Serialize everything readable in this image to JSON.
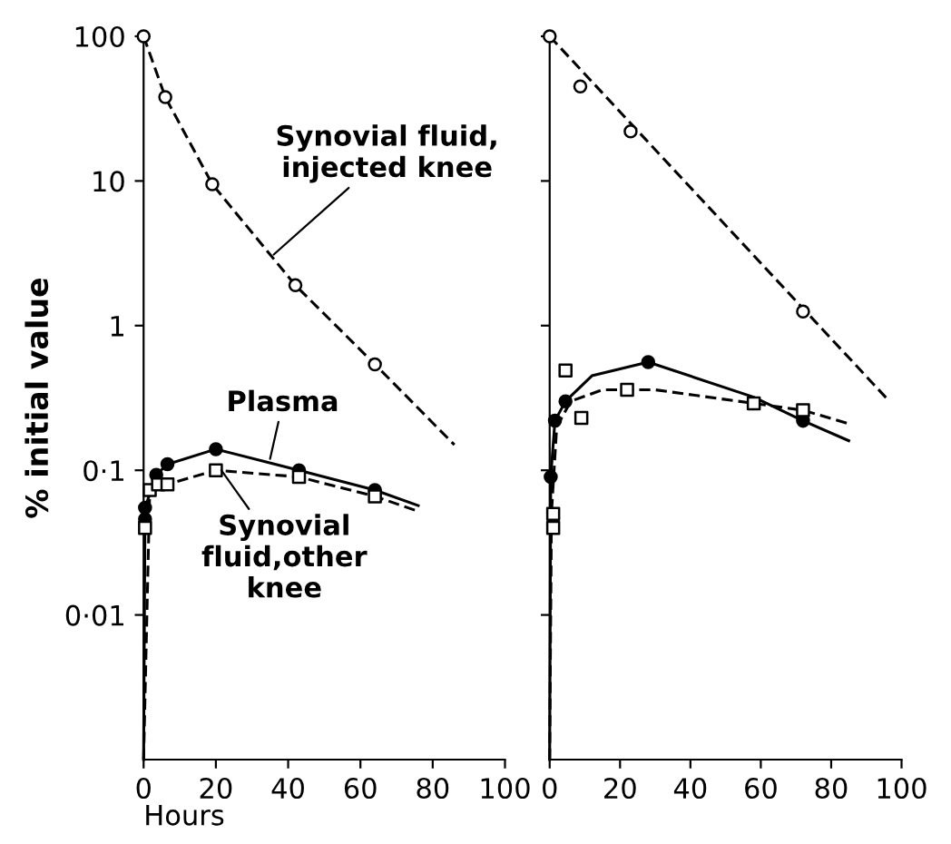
{
  "chart_data": [
    {
      "type": "line",
      "ylabel": "% initial value",
      "xlabel": "Hours",
      "log": "y",
      "ylim": [
        0.001,
        100
      ],
      "xlim": [
        0,
        100
      ],
      "yticks": [
        100,
        10,
        1,
        {
          "value": 0.1,
          "label": "0·1"
        },
        {
          "value": 0.01,
          "label": "0·01"
        }
      ],
      "xticks": [
        0,
        20,
        40,
        60,
        80,
        100
      ],
      "grid": false,
      "legend": false,
      "series": [
        {
          "color": "#000000",
          "line_style": "dashed",
          "marker": "none",
          "x": [
            0,
            6,
            19,
            42,
            64,
            86
          ],
          "values": [
            100,
            38,
            9.5,
            1.9,
            0.54,
            0.15
          ]
        },
        {
          "type": "scatter",
          "color": "#ffffff",
          "marker": "circle",
          "x": [
            0,
            6,
            19,
            42,
            64
          ],
          "values": [
            100,
            38,
            9.5,
            1.9,
            0.54
          ]
        },
        {
          "color": "#000000",
          "line_style": "solid",
          "marker": "none",
          "x": [
            0,
            0.4,
            3.5,
            6.6,
            20,
            43,
            64,
            76
          ],
          "values": [
            0.001,
            0.055,
            0.093,
            0.11,
            0.14,
            0.1,
            0.073,
            0.057
          ]
        },
        {
          "type": "scatter",
          "color": "#000000",
          "marker": "circle",
          "x": [
            0.4,
            0.4,
            3.5,
            6.6,
            20,
            43,
            64
          ],
          "values": [
            0.055,
            0.046,
            0.093,
            0.11,
            0.14,
            0.1,
            0.073
          ]
        },
        {
          "color": "#000000",
          "line_style": "dashed",
          "marker": "none",
          "x": [
            0,
            1.7,
            4,
            6.6,
            20,
            43,
            64,
            76
          ],
          "values": [
            0.001,
            0.073,
            0.08,
            0.08,
            0.1,
            0.09,
            0.066,
            0.052
          ]
        },
        {
          "type": "scatter",
          "color": "#ffffff",
          "marker": "square",
          "x": [
            0.4,
            1.7,
            4,
            6.6,
            20,
            43,
            64
          ],
          "values": [
            0.04,
            0.073,
            0.08,
            0.08,
            0.1,
            0.09,
            0.066
          ]
        }
      ],
      "annotations": [
        {
          "text": "Synovial fluid,\ninjected knee",
          "x": 36,
          "y": 3.1
        },
        {
          "text": "Plasma",
          "x": 35,
          "y": 0.12
        },
        {
          "text": "Synovial\nfluid,other\nknee",
          "x": 21.5,
          "y": 0.1
        }
      ]
    },
    {
      "type": "line",
      "log": "y",
      "ylim": [
        0.001,
        100
      ],
      "xlim": [
        0,
        100
      ],
      "yticks": [
        {
          "value": 100,
          "label": null
        },
        {
          "value": 10,
          "label": null
        },
        {
          "value": 1,
          "label": null
        },
        {
          "value": 0.1,
          "label": null
        },
        {
          "value": 0.01,
          "label": null
        }
      ],
      "xticks": [
        0,
        20,
        40,
        60,
        80,
        100
      ],
      "tick_labels": "x",
      "grid": false,
      "legend": false,
      "series": [
        {
          "color": "#000000",
          "line_style": "dashed",
          "marker": "none",
          "x": [
            0,
            96
          ],
          "values": [
            100,
            0.31
          ]
        },
        {
          "type": "scatter",
          "color": "#ffffff",
          "marker": "circle",
          "x": [
            0,
            8.7,
            23,
            72
          ],
          "values": [
            100,
            45,
            22,
            1.25
          ]
        },
        {
          "color": "#000000",
          "line_style": "solid",
          "marker": "none",
          "x": [
            0,
            0.3,
            1.5,
            4.5,
            12,
            28,
            58,
            72,
            85
          ],
          "values": [
            0.001,
            0.09,
            0.22,
            0.3,
            0.45,
            0.56,
            0.32,
            0.22,
            0.16
          ]
        },
        {
          "type": "scatter",
          "color": "#000000",
          "marker": "circle",
          "x": [
            0.3,
            1.5,
            4.5,
            28,
            72
          ],
          "values": [
            0.09,
            0.22,
            0.3,
            0.56,
            0.22
          ]
        },
        {
          "color": "#000000",
          "line_style": "dashed",
          "marker": "none",
          "x": [
            0,
            0.5,
            2,
            6,
            15,
            30,
            58,
            72,
            85
          ],
          "values": [
            0.001,
            0.05,
            0.2,
            0.3,
            0.36,
            0.36,
            0.29,
            0.26,
            0.21
          ]
        },
        {
          "type": "scatter",
          "color": "#ffffff",
          "marker": "square",
          "x": [
            1,
            1,
            4.5,
            9,
            22,
            58,
            72
          ],
          "values": [
            0.05,
            0.04,
            0.49,
            0.23,
            0.36,
            0.29,
            0.26
          ]
        }
      ]
    }
  ]
}
